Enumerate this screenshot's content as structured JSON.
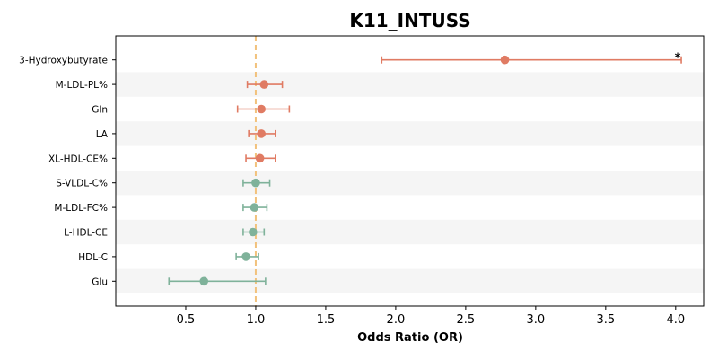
{
  "chart_data": {
    "type": "forest",
    "title": "K11_INTUSS",
    "xlabel": "Odds Ratio (OR)",
    "ylabel": "",
    "xlim": [
      0.0,
      4.2
    ],
    "xticks": [
      "0.5",
      "1.0",
      "1.5",
      "2.0",
      "2.5",
      "3.0",
      "3.5",
      "4.0"
    ],
    "reference_line": 1.0,
    "grid": false,
    "row_striping": true,
    "colors": {
      "risk": "#e07b63",
      "protective": "#7fb29a",
      "reference_line": "#f2c27c",
      "stripe": "#f5f5f5"
    },
    "rows": [
      {
        "label": "3-Hydroxybutyrate",
        "or": 2.78,
        "lower": 1.9,
        "upper": 4.04,
        "group": "risk",
        "annotation": "*"
      },
      {
        "label": "M-LDL-PL%",
        "or": 1.06,
        "lower": 0.94,
        "upper": 1.19,
        "group": "risk",
        "annotation": ""
      },
      {
        "label": "Gln",
        "or": 1.04,
        "lower": 0.87,
        "upper": 1.24,
        "group": "risk",
        "annotation": ""
      },
      {
        "label": "LA",
        "or": 1.04,
        "lower": 0.95,
        "upper": 1.14,
        "group": "risk",
        "annotation": ""
      },
      {
        "label": "XL-HDL-CE%",
        "or": 1.03,
        "lower": 0.93,
        "upper": 1.14,
        "group": "risk",
        "annotation": ""
      },
      {
        "label": "S-VLDL-C%",
        "or": 1.0,
        "lower": 0.91,
        "upper": 1.1,
        "group": "protective",
        "annotation": ""
      },
      {
        "label": "M-LDL-FC%",
        "or": 0.99,
        "lower": 0.91,
        "upper": 1.08,
        "group": "protective",
        "annotation": ""
      },
      {
        "label": "L-HDL-CE",
        "or": 0.98,
        "lower": 0.91,
        "upper": 1.06,
        "group": "protective",
        "annotation": ""
      },
      {
        "label": "HDL-C",
        "or": 0.93,
        "lower": 0.86,
        "upper": 1.02,
        "group": "protective",
        "annotation": ""
      },
      {
        "label": "Glu",
        "or": 0.63,
        "lower": 0.38,
        "upper": 1.07,
        "group": "protective",
        "annotation": ""
      }
    ]
  }
}
